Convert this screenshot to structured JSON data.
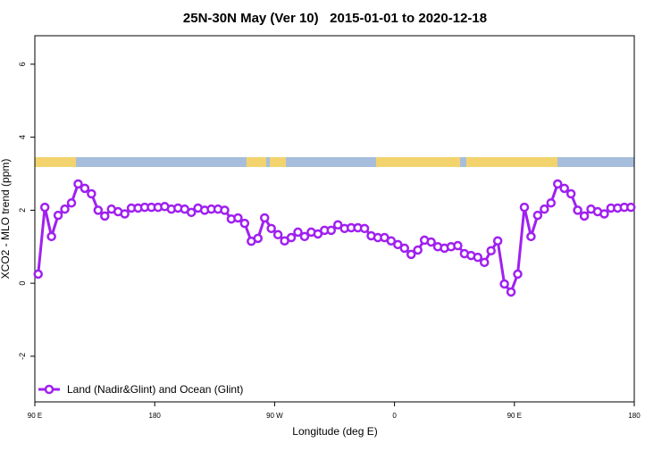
{
  "chart_data": {
    "type": "line",
    "title": "25N-30N May (Ver 10)   2015-01-01 to 2020-12-18",
    "x_label": "Longitude (deg E)",
    "y_label": "XCO2 - MLO trend (ppm)",
    "x": [
      92.5,
      97.5,
      102.5,
      107.5,
      112.5,
      117.5,
      122.5,
      127.5,
      132.5,
      137.5,
      142.5,
      147.5,
      152.5,
      157.5,
      162.5,
      167.5,
      172.5,
      177.5,
      182.5,
      187.5,
      192.5,
      197.5,
      202.5,
      207.5,
      212.5,
      217.5,
      222.5,
      227.5,
      232.5,
      237.5,
      242.5,
      247.5,
      252.5,
      257.5,
      262.5,
      267.5,
      272.5,
      277.5,
      282.5,
      287.5,
      292.5,
      297.5,
      302.5,
      307.5,
      312.5,
      317.5,
      322.5,
      327.5,
      332.5,
      337.5,
      342.5,
      347.5,
      352.5,
      357.5,
      362.5,
      367.5,
      372.5,
      377.5,
      382.5,
      387.5,
      392.5,
      397.5,
      402.5,
      407.5,
      412.5,
      417.5,
      422.5,
      427.5,
      432.5,
      437.5,
      442.5,
      447.5,
      452.5,
      457.5,
      462.5,
      467.5,
      472.5,
      477.5,
      482.5,
      487.5,
      492.5,
      497.5,
      502.5,
      507.5,
      512.5,
      517.5,
      522.5,
      527.5,
      532.5,
      537.5
    ],
    "series": [
      {
        "name": "Land (Nadir&Glint) and Ocean (Glint)",
        "color": "#a020f0",
        "values": [
          0.25,
          2.08,
          1.28,
          1.86,
          2.03,
          2.2,
          2.72,
          2.6,
          2.45,
          2.0,
          1.84,
          2.03,
          1.96,
          1.9,
          2.06,
          2.06,
          2.08,
          2.08,
          2.08,
          2.1,
          2.03,
          2.06,
          2.03,
          1.94,
          2.06,
          2.0,
          2.03,
          2.03,
          2.0,
          1.76,
          1.79,
          1.64,
          1.15,
          1.23,
          1.79,
          1.5,
          1.33,
          1.16,
          1.25,
          1.4,
          1.28,
          1.4,
          1.35,
          1.45,
          1.45,
          1.6,
          1.5,
          1.52,
          1.52,
          1.5,
          1.3,
          1.25,
          1.25,
          1.16,
          1.06,
          0.96,
          0.79,
          0.91,
          1.18,
          1.13,
          1.0,
          0.96,
          1.0,
          1.03,
          0.81,
          0.76,
          0.71,
          0.57,
          0.89,
          1.16,
          -0.02,
          -0.24,
          0.25,
          2.08,
          1.28,
          1.86,
          2.03,
          2.2,
          2.72,
          2.6,
          2.45,
          2.0,
          1.84,
          2.03,
          1.96,
          1.9,
          2.06,
          2.06,
          2.08,
          2.08
        ]
      }
    ],
    "xlim": [
      90,
      540
    ],
    "xticks": [
      {
        "value": 90,
        "label": "90 E"
      },
      180,
      {
        "value": 270,
        "label": "90 W"
      },
      0,
      {
        "value": 450,
        "label": "90 E"
      },
      {
        "value": 540,
        "label": "180"
      }
    ],
    "ylim": [
      -3.25,
      6.78
    ],
    "yticks": [
      -2,
      0,
      2,
      4,
      6
    ],
    "legend": "bottom-left"
  }
}
